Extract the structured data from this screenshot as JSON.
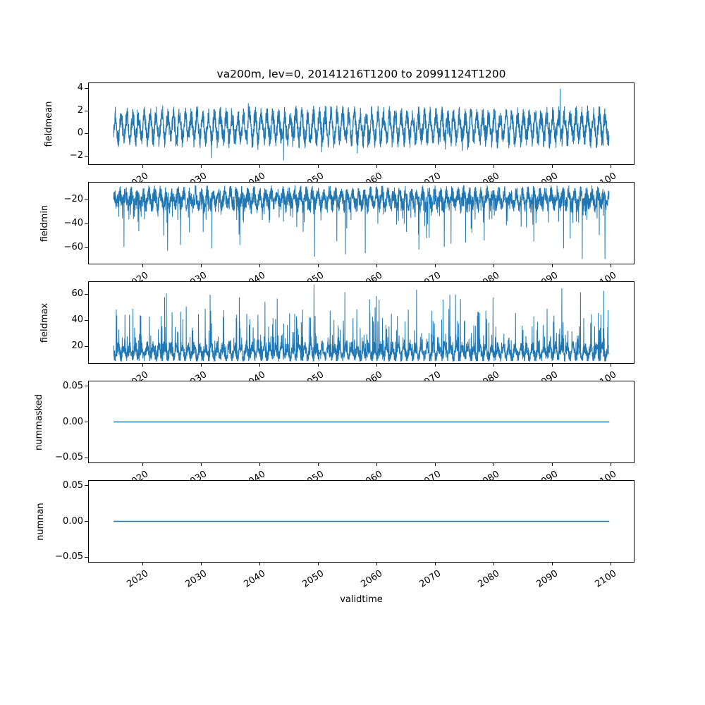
{
  "title": "va200m, lev=0, 20141216T1200 to 20991124T1200",
  "xlabel": "validtime",
  "line_color": "#1f77b4",
  "axis_color": "#000000",
  "background_color": "#ffffff",
  "x_axis": {
    "lim": [
      2010.71,
      2104.15
    ],
    "ticks": [
      {
        "v": 2020,
        "label": "2020"
      },
      {
        "v": 2030,
        "label": "2030"
      },
      {
        "v": 2040,
        "label": "2040"
      },
      {
        "v": 2050,
        "label": "2050"
      },
      {
        "v": 2060,
        "label": "2060"
      },
      {
        "v": 2070,
        "label": "2070"
      },
      {
        "v": 2080,
        "label": "2080"
      },
      {
        "v": 2090,
        "label": "2090"
      },
      {
        "v": 2100,
        "label": "2100"
      }
    ],
    "tick_rotation_deg": 33
  },
  "chart_data": [
    {
      "id": "fieldmean",
      "type": "line",
      "ylabel": "fieldmean",
      "ylim": [
        -2.8,
        4.5
      ],
      "yticks": [
        {
          "v": 4,
          "label": "4"
        },
        {
          "v": 2,
          "label": "2"
        },
        {
          "v": 0,
          "label": "0"
        },
        {
          "v": -2,
          "label": "−2"
        }
      ],
      "x_start": 2014.96,
      "x_end": 2099.9,
      "points_per_year": 40,
      "model": {
        "kind": "seasonal_noise",
        "seed": 101,
        "base": 0.55,
        "seasonal_amplitude": 1.05,
        "seasonal_phase": 0,
        "noise_amplitude": 0.9,
        "spike_rules": [
          {
            "prob": 0.02,
            "min": 0.3,
            "max": 1.0,
            "sign": 1
          },
          {
            "prob": 0.02,
            "min": 0.3,
            "max": 0.9,
            "sign": -1
          }
        ],
        "clamp": [
          -2.3,
          3.8
        ]
      },
      "extremes": [
        {
          "x": 2091.5,
          "v": 4.0
        },
        {
          "x": 2044.1,
          "v": -2.45
        }
      ],
      "summary": "Dense noisy series with annual cycle, oscillating roughly between -1.8 and 3.4 around ~0.6; maximum 4.0 near 2092, minimum about -2.45 near 2044."
    },
    {
      "id": "fieldmin",
      "type": "line",
      "ylabel": "fieldmin",
      "ylim": [
        -74,
        -5
      ],
      "yticks": [
        {
          "v": -20,
          "label": "−20"
        },
        {
          "v": -40,
          "label": "−40"
        },
        {
          "v": -60,
          "label": "−60"
        }
      ],
      "x_start": 2014.96,
      "x_end": 2099.9,
      "points_per_year": 40,
      "model": {
        "kind": "seasonal_noise",
        "seed": 202,
        "base": -19,
        "seasonal_amplitude": 5,
        "seasonal_phase": 0.25,
        "noise_amplitude": 7,
        "spike_rules": [
          {
            "prob": 0.05,
            "min": 3,
            "max": 18,
            "sign": -1
          },
          {
            "prob": 0.012,
            "min": 18,
            "max": 38,
            "sign": -1
          }
        ],
        "clamp": [
          -71,
          -7.5
        ]
      },
      "extremes": [
        {
          "x": 2024.2,
          "v": -63
        },
        {
          "x": 2031.8,
          "v": -61
        },
        {
          "x": 2036.6,
          "v": -58
        },
        {
          "x": 2049.4,
          "v": -68
        },
        {
          "x": 2054.7,
          "v": -66
        },
        {
          "x": 2058.1,
          "v": -65
        },
        {
          "x": 2067.3,
          "v": -62
        },
        {
          "x": 2072.8,
          "v": -57
        },
        {
          "x": 2087.0,
          "v": -55
        },
        {
          "x": 2092.1,
          "v": -61
        },
        {
          "x": 2095.3,
          "v": -70
        },
        {
          "x": 2099.2,
          "v": -70
        }
      ],
      "summary": "Dense band between about -8 and -30 with frequent downward spikes to -40..-55 and occasional deep spikes reaching about -70 (notably near 2049, 2095 and 2099)."
    },
    {
      "id": "fieldmax",
      "type": "line",
      "ylabel": "fieldmax",
      "ylim": [
        6.5,
        70
      ],
      "yticks": [
        {
          "v": 60,
          "label": "60"
        },
        {
          "v": 40,
          "label": "40"
        },
        {
          "v": 20,
          "label": "20"
        }
      ],
      "x_start": 2014.96,
      "x_end": 2099.9,
      "points_per_year": 40,
      "model": {
        "kind": "seasonal_noise",
        "seed": 303,
        "base": 15,
        "seasonal_amplitude": 4,
        "seasonal_phase": 0.5,
        "noise_amplitude": 5,
        "spike_rules": [
          {
            "prob": 0.08,
            "min": 2,
            "max": 14,
            "sign": 1
          },
          {
            "prob": 0.03,
            "min": 14,
            "max": 28,
            "sign": 1
          },
          {
            "prob": 0.008,
            "min": 28,
            "max": 40,
            "sign": 1
          }
        ],
        "clamp": [
          8,
          66
        ]
      },
      "extremes": [
        {
          "x": 2024.0,
          "v": 61
        },
        {
          "x": 2031.5,
          "v": 60
        },
        {
          "x": 2036.5,
          "v": 58
        },
        {
          "x": 2043.0,
          "v": 57
        },
        {
          "x": 2049.3,
          "v": 68
        },
        {
          "x": 2054.6,
          "v": 62
        },
        {
          "x": 2060.0,
          "v": 59
        },
        {
          "x": 2066.9,
          "v": 64
        },
        {
          "x": 2072.6,
          "v": 60
        },
        {
          "x": 2080.0,
          "v": 58
        },
        {
          "x": 2091.8,
          "v": 65
        },
        {
          "x": 2095.0,
          "v": 62
        },
        {
          "x": 2099.0,
          "v": 63
        }
      ],
      "summary": "Dense band between about 8 and 30 with frequent upward spikes to 35..55 and occasional tall spikes reaching about 60-68 (tallest near 2049)."
    },
    {
      "id": "nummasked",
      "type": "line",
      "ylabel": "nummasked",
      "ylim": [
        -0.0575,
        0.0575
      ],
      "yticks": [
        {
          "v": 0.05,
          "label": "0.05"
        },
        {
          "v": 0,
          "label": "0.00"
        },
        {
          "v": -0.05,
          "label": "−0.05"
        }
      ],
      "x_start": 2014.96,
      "x_end": 2099.9,
      "points_per_year": 4,
      "model": {
        "kind": "constant",
        "value": 0
      },
      "extremes": [],
      "summary": "Constant zero for the entire period."
    },
    {
      "id": "numnan",
      "type": "line",
      "ylabel": "numnan",
      "ylim": [
        -0.0575,
        0.0575
      ],
      "yticks": [
        {
          "v": 0.05,
          "label": "0.05"
        },
        {
          "v": 0,
          "label": "0.00"
        },
        {
          "v": -0.05,
          "label": "−0.05"
        }
      ],
      "x_start": 2014.96,
      "x_end": 2099.9,
      "points_per_year": 4,
      "model": {
        "kind": "constant",
        "value": 0
      },
      "extremes": [],
      "summary": "Constant zero for the entire period."
    }
  ]
}
